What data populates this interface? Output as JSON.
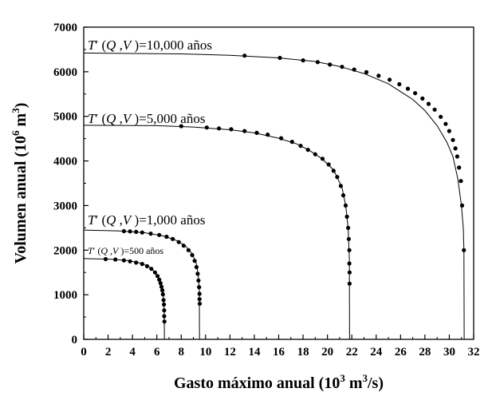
{
  "chart_data": {
    "type": "scatter",
    "xlabel": "Gasto máximo anual (10³ m³/s)",
    "ylabel": "Volumen anual (10⁶ m³)",
    "xlabel_parts": {
      "pre": "Gasto máximo anual (10",
      "sup1": "3",
      "mid": " m",
      "sup2": "3",
      "post": "/s)"
    },
    "ylabel_parts": {
      "pre": "Volumen anual (10",
      "sup1": "6",
      "mid": " m",
      "sup2": "3",
      "post": ")"
    },
    "xlim": [
      0,
      32
    ],
    "ylim": [
      0,
      7000
    ],
    "x_ticks": [
      "0",
      "2",
      "4",
      "6",
      "8",
      "10",
      "12",
      "14",
      "16",
      "18",
      "20",
      "22",
      "24",
      "26",
      "28",
      "30",
      "32"
    ],
    "y_ticks": [
      "0",
      "1000",
      "2000",
      "3000",
      "4000",
      "5000",
      "6000",
      "7000"
    ],
    "grid": false,
    "legend": "none",
    "series": [
      {
        "label_parts": {
          "T": "T",
          "prime": "′",
          "open": " (",
          "Q": "Q",
          "comma": " ,",
          "V": "V",
          "close": " )",
          "rest": "=10,000 años"
        },
        "line": [
          [
            0,
            6420
          ],
          [
            8,
            6400
          ],
          [
            12,
            6370
          ],
          [
            16,
            6310
          ],
          [
            19,
            6230
          ],
          [
            21,
            6120
          ],
          [
            23,
            5960
          ],
          [
            25,
            5730
          ],
          [
            27,
            5380
          ],
          [
            28,
            5130
          ],
          [
            29,
            4790
          ],
          [
            29.8,
            4420
          ],
          [
            30.3,
            4100
          ],
          [
            30.7,
            3600
          ],
          [
            31.0,
            3000
          ],
          [
            31.15,
            2500
          ],
          [
            31.2,
            2000
          ],
          [
            31.22,
            0
          ]
        ],
        "points": [
          [
            13.2,
            6360
          ],
          [
            16.1,
            6310
          ],
          [
            18,
            6255
          ],
          [
            19.2,
            6215
          ],
          [
            20.2,
            6160
          ],
          [
            21.2,
            6110
          ],
          [
            22.2,
            6050
          ],
          [
            23.2,
            5990
          ],
          [
            24.2,
            5910
          ],
          [
            25.1,
            5820
          ],
          [
            25.9,
            5720
          ],
          [
            26.6,
            5620
          ],
          [
            27.2,
            5520
          ],
          [
            27.8,
            5400
          ],
          [
            28.3,
            5280
          ],
          [
            28.8,
            5150
          ],
          [
            29.3,
            4990
          ],
          [
            29.7,
            4830
          ],
          [
            30.0,
            4670
          ],
          [
            30.3,
            4470
          ],
          [
            30.5,
            4280
          ],
          [
            30.65,
            4100
          ],
          [
            30.8,
            3850
          ],
          [
            30.95,
            3550
          ],
          [
            31.05,
            3000
          ],
          [
            31.2,
            2000
          ]
        ]
      },
      {
        "label_parts": {
          "T": "T",
          "prime": "′",
          "open": " (",
          "Q": "Q",
          "comma": " ,",
          "V": "V",
          "close": " )",
          "rest": "=5,000 años"
        },
        "line": [
          [
            0,
            4800
          ],
          [
            6,
            4790
          ],
          [
            9,
            4760
          ],
          [
            12,
            4700
          ],
          [
            14,
            4630
          ],
          [
            16,
            4510
          ],
          [
            17.5,
            4380
          ],
          [
            18.5,
            4240
          ],
          [
            19.5,
            4060
          ],
          [
            20.5,
            3800
          ],
          [
            21.2,
            3400
          ],
          [
            21.5,
            3000
          ],
          [
            21.7,
            2500
          ],
          [
            21.8,
            1800
          ],
          [
            21.82,
            0
          ]
        ],
        "points": [
          [
            8.0,
            4780
          ],
          [
            10.1,
            4750
          ],
          [
            11.1,
            4730
          ],
          [
            12.1,
            4710
          ],
          [
            13.2,
            4670
          ],
          [
            14.2,
            4630
          ],
          [
            15.1,
            4590
          ],
          [
            16.2,
            4510
          ],
          [
            17.1,
            4430
          ],
          [
            17.8,
            4340
          ],
          [
            18.4,
            4250
          ],
          [
            19.0,
            4150
          ],
          [
            19.6,
            4050
          ],
          [
            20.1,
            3920
          ],
          [
            20.5,
            3780
          ],
          [
            20.8,
            3640
          ],
          [
            21.1,
            3440
          ],
          [
            21.3,
            3230
          ],
          [
            21.5,
            3000
          ],
          [
            21.6,
            2750
          ],
          [
            21.7,
            2500
          ],
          [
            21.75,
            2250
          ],
          [
            21.8,
            2000
          ],
          [
            21.8,
            1700
          ],
          [
            21.82,
            1500
          ],
          [
            21.82,
            1250
          ]
        ]
      },
      {
        "label_parts": {
          "T": "T",
          "prime": "′",
          "open": " (",
          "Q": "Q",
          "comma": " ,",
          "V": "V",
          "close": " )",
          "rest": "=1,000 años"
        },
        "line": [
          [
            0,
            2450
          ],
          [
            3,
            2430
          ],
          [
            5,
            2390
          ],
          [
            6.5,
            2320
          ],
          [
            7.5,
            2230
          ],
          [
            8.3,
            2110
          ],
          [
            8.8,
            1950
          ],
          [
            9.2,
            1750
          ],
          [
            9.4,
            1450
          ],
          [
            9.48,
            1100
          ],
          [
            9.5,
            0
          ]
        ],
        "points": [
          [
            3.3,
            2425
          ],
          [
            3.8,
            2420
          ],
          [
            4.3,
            2410
          ],
          [
            4.8,
            2395
          ],
          [
            5.5,
            2370
          ],
          [
            6.2,
            2340
          ],
          [
            6.8,
            2300
          ],
          [
            7.3,
            2250
          ],
          [
            7.8,
            2180
          ],
          [
            8.2,
            2100
          ],
          [
            8.6,
            2000
          ],
          [
            8.9,
            1890
          ],
          [
            9.1,
            1760
          ],
          [
            9.25,
            1620
          ],
          [
            9.35,
            1470
          ],
          [
            9.42,
            1320
          ],
          [
            9.47,
            1170
          ],
          [
            9.5,
            1020
          ],
          [
            9.5,
            900
          ],
          [
            9.52,
            800
          ]
        ]
      },
      {
        "label_parts": {
          "T": "T",
          "prime": "′",
          "open": " (",
          "Q": "Q",
          "comma": " ,",
          "V": "V",
          "close": " )",
          "rest": "=500 años"
        },
        "line": [
          [
            0,
            1810
          ],
          [
            2,
            1800
          ],
          [
            3.5,
            1770
          ],
          [
            4.5,
            1720
          ],
          [
            5.3,
            1640
          ],
          [
            5.8,
            1520
          ],
          [
            6.2,
            1360
          ],
          [
            6.45,
            1150
          ],
          [
            6.55,
            900
          ],
          [
            6.6,
            600
          ],
          [
            6.62,
            0
          ]
        ],
        "points": [
          [
            1.8,
            1800
          ],
          [
            2.6,
            1790
          ],
          [
            3.3,
            1770
          ],
          [
            3.8,
            1750
          ],
          [
            4.3,
            1720
          ],
          [
            4.8,
            1690
          ],
          [
            5.2,
            1640
          ],
          [
            5.55,
            1580
          ],
          [
            5.85,
            1500
          ],
          [
            6.05,
            1420
          ],
          [
            6.2,
            1340
          ],
          [
            6.3,
            1260
          ],
          [
            6.38,
            1180
          ],
          [
            6.45,
            1100
          ],
          [
            6.5,
            1010
          ],
          [
            6.55,
            880
          ],
          [
            6.58,
            780
          ],
          [
            6.6,
            650
          ],
          [
            6.6,
            520
          ],
          [
            6.62,
            400
          ]
        ]
      }
    ]
  }
}
